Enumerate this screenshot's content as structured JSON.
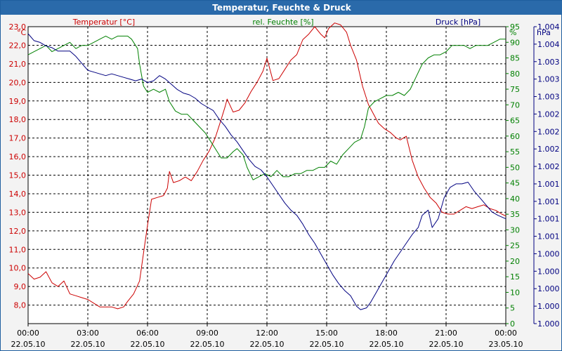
{
  "window": {
    "title": "Temperatur, Feuchte & Druck"
  },
  "chart_data": {
    "type": "line",
    "title": "Temperatur, Feuchte & Druck",
    "x_ticks": [
      {
        "time": "00:00",
        "date": "22.05.10"
      },
      {
        "time": "03:00",
        "date": "22.05.10"
      },
      {
        "time": "06:00",
        "date": "22.05.10"
      },
      {
        "time": "09:00",
        "date": "22.05.10"
      },
      {
        "time": "12:00",
        "date": "22.05.10"
      },
      {
        "time": "15:00",
        "date": "22.05.10"
      },
      {
        "time": "18:00",
        "date": "22.05.10"
      },
      {
        "time": "21:00",
        "date": "22.05.10"
      },
      {
        "time": "00:00",
        "date": "23.05.10"
      }
    ],
    "xlim_hours": [
      0,
      24
    ],
    "axes": {
      "temperature": {
        "label": "Temperatur [°C]",
        "unit": "°C",
        "color": "#cc0000",
        "side": "left",
        "ylim": [
          7.0,
          23.0
        ],
        "tick_values": [
          8,
          9,
          10,
          11,
          12,
          13,
          14,
          15,
          16,
          17,
          18,
          19,
          20,
          21,
          22,
          23
        ],
        "tick_labels": [
          "8,0",
          "9,0",
          "10,0",
          "11,0",
          "12,0",
          "13,0",
          "14,0",
          "15,0",
          "16,0",
          "17,0",
          "18,0",
          "19,0",
          "20,0",
          "21,0",
          "22,0",
          "23,0"
        ]
      },
      "humidity": {
        "label": "rel. Feuchte [%]",
        "unit": "%",
        "color": "#008000",
        "side": "right",
        "ylim": [
          0,
          95
        ],
        "tick_values": [
          0,
          5,
          10,
          15,
          20,
          25,
          30,
          35,
          40,
          45,
          50,
          55,
          60,
          65,
          70,
          75,
          80,
          85,
          90,
          95
        ],
        "tick_labels": [
          "0",
          "5",
          "10",
          "15",
          "20",
          "25",
          "30",
          "35",
          "40",
          "45",
          "50",
          "55",
          "60",
          "65",
          "70",
          "75",
          "80",
          "85",
          "90",
          "95"
        ]
      },
      "pressure": {
        "label": "Druck [hPa]",
        "unit": "hPa",
        "color": "#000080",
        "side": "right-outer",
        "ylim": [
          0,
          17
        ],
        "tick_values": [
          0,
          1,
          2,
          3,
          4,
          5,
          6,
          7,
          8,
          9,
          10,
          11,
          12,
          13,
          14,
          15,
          16,
          17
        ],
        "tick_labels": [
          "1.000",
          "1.000",
          "1.000",
          "1.000",
          "1.000",
          "1.001",
          "1.001",
          "1.001",
          "1.001",
          "1.002",
          "1.002",
          "1.002",
          "1.002",
          "1.003",
          "1.003",
          "1.003",
          "1.004",
          "1.004"
        ]
      }
    },
    "series": [
      {
        "name": "Temperatur",
        "axis": "temperature",
        "color": "#cc0000",
        "points": [
          [
            0,
            9.7
          ],
          [
            0.3,
            9.4
          ],
          [
            0.6,
            9.5
          ],
          [
            0.9,
            9.8
          ],
          [
            1.2,
            9.2
          ],
          [
            1.5,
            9.0
          ],
          [
            1.8,
            9.3
          ],
          [
            2.1,
            8.6
          ],
          [
            2.4,
            8.5
          ],
          [
            2.7,
            8.4
          ],
          [
            3.0,
            8.3
          ],
          [
            3.3,
            8.1
          ],
          [
            3.6,
            7.9
          ],
          [
            3.9,
            7.9
          ],
          [
            4.2,
            7.9
          ],
          [
            4.5,
            7.8
          ],
          [
            4.8,
            7.9
          ],
          [
            5.0,
            8.2
          ],
          [
            5.3,
            8.6
          ],
          [
            5.6,
            9.3
          ],
          [
            5.8,
            10.8
          ],
          [
            6.0,
            12.3
          ],
          [
            6.2,
            13.7
          ],
          [
            6.5,
            13.8
          ],
          [
            6.8,
            13.9
          ],
          [
            7.0,
            14.3
          ],
          [
            7.1,
            15.2
          ],
          [
            7.3,
            14.6
          ],
          [
            7.6,
            14.7
          ],
          [
            7.9,
            14.9
          ],
          [
            8.2,
            14.7
          ],
          [
            8.5,
            15.2
          ],
          [
            8.8,
            15.8
          ],
          [
            9.1,
            16.3
          ],
          [
            9.4,
            17.0
          ],
          [
            9.7,
            18.0
          ],
          [
            9.9,
            18.7
          ],
          [
            10.0,
            19.1
          ],
          [
            10.3,
            18.4
          ],
          [
            10.6,
            18.5
          ],
          [
            10.9,
            18.9
          ],
          [
            11.2,
            19.5
          ],
          [
            11.5,
            20.0
          ],
          [
            11.8,
            20.6
          ],
          [
            12.0,
            21.3
          ],
          [
            12.3,
            20.1
          ],
          [
            12.6,
            20.2
          ],
          [
            12.9,
            20.7
          ],
          [
            13.2,
            21.2
          ],
          [
            13.5,
            21.5
          ],
          [
            13.8,
            22.3
          ],
          [
            14.1,
            22.6
          ],
          [
            14.4,
            23.0
          ],
          [
            14.7,
            22.6
          ],
          [
            14.9,
            22.4
          ],
          [
            15.1,
            22.9
          ],
          [
            15.4,
            23.2
          ],
          [
            15.7,
            23.1
          ],
          [
            16.0,
            22.7
          ],
          [
            16.2,
            22.0
          ],
          [
            16.5,
            21.2
          ],
          [
            16.8,
            19.8
          ],
          [
            17.1,
            18.8
          ],
          [
            17.4,
            18.2
          ],
          [
            17.6,
            17.8
          ],
          [
            17.9,
            17.5
          ],
          [
            18.2,
            17.3
          ],
          [
            18.5,
            17.0
          ],
          [
            18.7,
            16.9
          ],
          [
            19.0,
            17.1
          ],
          [
            19.3,
            15.8
          ],
          [
            19.6,
            14.9
          ],
          [
            19.9,
            14.3
          ],
          [
            20.2,
            13.8
          ],
          [
            20.5,
            13.5
          ],
          [
            20.8,
            13.0
          ],
          [
            21.1,
            12.9
          ],
          [
            21.4,
            12.9
          ],
          [
            21.7,
            13.1
          ],
          [
            22.0,
            13.3
          ],
          [
            22.3,
            13.2
          ],
          [
            22.6,
            13.3
          ],
          [
            22.9,
            13.4
          ],
          [
            23.2,
            13.2
          ],
          [
            23.5,
            13.1
          ],
          [
            23.8,
            12.9
          ],
          [
            24.0,
            12.8
          ]
        ]
      },
      {
        "name": "rel. Feuchte",
        "axis": "humidity",
        "color": "#008000",
        "points": [
          [
            0,
            86
          ],
          [
            0.3,
            87
          ],
          [
            0.6,
            88
          ],
          [
            0.9,
            89
          ],
          [
            1.2,
            87
          ],
          [
            1.5,
            88
          ],
          [
            1.8,
            89
          ],
          [
            2.1,
            90
          ],
          [
            2.4,
            88
          ],
          [
            2.7,
            89
          ],
          [
            3.0,
            89
          ],
          [
            3.3,
            90
          ],
          [
            3.6,
            91
          ],
          [
            3.9,
            92
          ],
          [
            4.2,
            91
          ],
          [
            4.5,
            92
          ],
          [
            4.8,
            92
          ],
          [
            5.0,
            92
          ],
          [
            5.2,
            91
          ],
          [
            5.5,
            88
          ],
          [
            5.6,
            83
          ],
          [
            5.8,
            76
          ],
          [
            6.0,
            74
          ],
          [
            6.3,
            75
          ],
          [
            6.6,
            74
          ],
          [
            6.9,
            75
          ],
          [
            7.1,
            71
          ],
          [
            7.4,
            68
          ],
          [
            7.7,
            67
          ],
          [
            8.0,
            67
          ],
          [
            8.3,
            65
          ],
          [
            8.6,
            63
          ],
          [
            8.9,
            61
          ],
          [
            9.2,
            58
          ],
          [
            9.5,
            55
          ],
          [
            9.7,
            53
          ],
          [
            10.0,
            53
          ],
          [
            10.3,
            55
          ],
          [
            10.5,
            56
          ],
          [
            10.8,
            54
          ],
          [
            11.0,
            50
          ],
          [
            11.3,
            46
          ],
          [
            11.6,
            47
          ],
          [
            11.9,
            48
          ],
          [
            12.2,
            47
          ],
          [
            12.5,
            49
          ],
          [
            12.8,
            47
          ],
          [
            13.1,
            47
          ],
          [
            13.4,
            48
          ],
          [
            13.7,
            48
          ],
          [
            14.0,
            49
          ],
          [
            14.3,
            49
          ],
          [
            14.6,
            50
          ],
          [
            14.9,
            50
          ],
          [
            15.2,
            52
          ],
          [
            15.5,
            51
          ],
          [
            15.8,
            54
          ],
          [
            16.1,
            56
          ],
          [
            16.4,
            58
          ],
          [
            16.7,
            59
          ],
          [
            16.9,
            63
          ],
          [
            17.1,
            69
          ],
          [
            17.4,
            71
          ],
          [
            17.7,
            72
          ],
          [
            18.0,
            73
          ],
          [
            18.3,
            73
          ],
          [
            18.6,
            74
          ],
          [
            18.9,
            73
          ],
          [
            19.2,
            75
          ],
          [
            19.5,
            79
          ],
          [
            19.8,
            83
          ],
          [
            20.1,
            85
          ],
          [
            20.4,
            86
          ],
          [
            20.7,
            86
          ],
          [
            21.0,
            87
          ],
          [
            21.3,
            89
          ],
          [
            21.6,
            89
          ],
          [
            21.9,
            89
          ],
          [
            22.2,
            88
          ],
          [
            22.5,
            89
          ],
          [
            22.8,
            89
          ],
          [
            23.1,
            89
          ],
          [
            23.4,
            90
          ],
          [
            23.7,
            91
          ],
          [
            24.0,
            91
          ]
        ]
      },
      {
        "name": "Druck",
        "axis": "pressure",
        "color": "#000080",
        "points": [
          [
            0,
            16.6
          ],
          [
            0.3,
            16.2
          ],
          [
            0.6,
            16.1
          ],
          [
            0.9,
            15.9
          ],
          [
            1.2,
            15.8
          ],
          [
            1.5,
            15.6
          ],
          [
            1.8,
            15.6
          ],
          [
            2.1,
            15.6
          ],
          [
            2.4,
            15.3
          ],
          [
            2.7,
            14.9
          ],
          [
            3.0,
            14.5
          ],
          [
            3.3,
            14.4
          ],
          [
            3.6,
            14.3
          ],
          [
            3.9,
            14.2
          ],
          [
            4.2,
            14.3
          ],
          [
            4.5,
            14.2
          ],
          [
            4.8,
            14.1
          ],
          [
            5.1,
            14.0
          ],
          [
            5.4,
            13.9
          ],
          [
            5.7,
            14.0
          ],
          [
            6.0,
            13.8
          ],
          [
            6.3,
            13.9
          ],
          [
            6.6,
            14.2
          ],
          [
            6.9,
            14.0
          ],
          [
            7.2,
            13.7
          ],
          [
            7.5,
            13.4
          ],
          [
            7.8,
            13.2
          ],
          [
            8.1,
            13.1
          ],
          [
            8.4,
            12.9
          ],
          [
            8.7,
            12.6
          ],
          [
            9.0,
            12.4
          ],
          [
            9.3,
            12.2
          ],
          [
            9.6,
            11.7
          ],
          [
            9.9,
            11.3
          ],
          [
            10.2,
            10.8
          ],
          [
            10.5,
            10.4
          ],
          [
            10.8,
            9.9
          ],
          [
            11.1,
            9.4
          ],
          [
            11.4,
            9.0
          ],
          [
            11.7,
            8.8
          ],
          [
            12.0,
            8.4
          ],
          [
            12.3,
            7.9
          ],
          [
            12.6,
            7.4
          ],
          [
            12.9,
            6.9
          ],
          [
            13.2,
            6.5
          ],
          [
            13.5,
            6.2
          ],
          [
            13.8,
            5.7
          ],
          [
            14.1,
            5.1
          ],
          [
            14.4,
            4.6
          ],
          [
            14.7,
            4.0
          ],
          [
            15.0,
            3.4
          ],
          [
            15.3,
            2.8
          ],
          [
            15.6,
            2.3
          ],
          [
            15.9,
            1.9
          ],
          [
            16.2,
            1.6
          ],
          [
            16.5,
            1.0
          ],
          [
            16.7,
            0.8
          ],
          [
            17.0,
            0.9
          ],
          [
            17.2,
            1.2
          ],
          [
            17.5,
            1.8
          ],
          [
            17.8,
            2.4
          ],
          [
            18.1,
            3.0
          ],
          [
            18.4,
            3.6
          ],
          [
            18.7,
            4.1
          ],
          [
            19.0,
            4.6
          ],
          [
            19.3,
            5.1
          ],
          [
            19.6,
            5.5
          ],
          [
            19.8,
            6.2
          ],
          [
            20.1,
            6.5
          ],
          [
            20.3,
            5.5
          ],
          [
            20.6,
            6.0
          ],
          [
            20.9,
            7.2
          ],
          [
            21.2,
            7.8
          ],
          [
            21.5,
            8.0
          ],
          [
            21.8,
            8.0
          ],
          [
            22.1,
            8.1
          ],
          [
            22.4,
            7.6
          ],
          [
            22.7,
            7.2
          ],
          [
            23.0,
            6.8
          ],
          [
            23.3,
            6.4
          ],
          [
            23.6,
            6.2
          ],
          [
            24.0,
            6.0
          ]
        ]
      }
    ]
  }
}
